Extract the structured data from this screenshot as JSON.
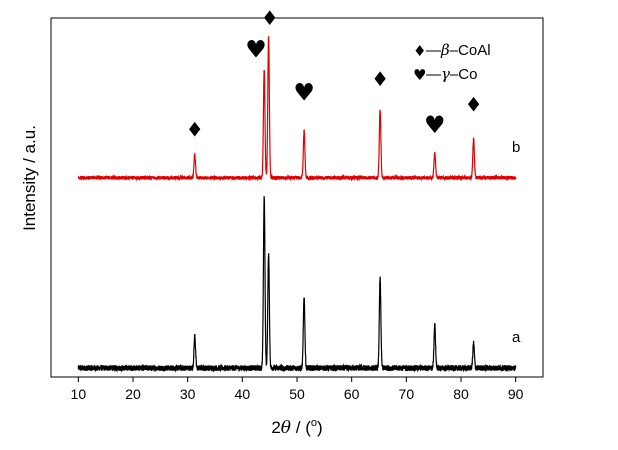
{
  "chart_data": {
    "type": "line",
    "xlabel": "2θ / (°)",
    "xlabel_parts": {
      "num": "2",
      "theta": "θ",
      "rest": " / (",
      "unit": "o",
      "close": ")"
    },
    "ylabel": "Intensity / a.u.",
    "xlim": [
      5,
      95
    ],
    "xticks": [
      10,
      20,
      30,
      40,
      50,
      60,
      70,
      80,
      90
    ],
    "ylim": [
      0,
      1
    ],
    "grid": false,
    "legend": {
      "placement": "top-right",
      "entries": [
        {
          "symbol": "♦",
          "dash": "—",
          "greek": "β",
          "rest": "–CoAl",
          "text": "♦—β–CoAl",
          "icon": "diamond-icon"
        },
        {
          "symbol": "♥",
          "dash": "—",
          "greek": "γ",
          "rest": "–Co",
          "text": "♥— γ–Co",
          "icon": "heart-icon"
        }
      ]
    },
    "series": [
      {
        "name": "a",
        "color": "#000000",
        "baseline": 0.025,
        "noise": 0.008,
        "peaks": [
          {
            "x": 31.3,
            "h": 0.09
          },
          {
            "x": 44.0,
            "h": 0.48
          },
          {
            "x": 44.8,
            "h": 0.32
          },
          {
            "x": 51.3,
            "h": 0.2
          },
          {
            "x": 65.2,
            "h": 0.25
          },
          {
            "x": 75.2,
            "h": 0.12
          },
          {
            "x": 82.3,
            "h": 0.07
          }
        ]
      },
      {
        "name": "b",
        "color": "#e00000",
        "baseline": 0.555,
        "noise": 0.005,
        "peaks": [
          {
            "x": 31.3,
            "h": 0.065
          },
          {
            "x": 44.0,
            "h": 0.3
          },
          {
            "x": 44.8,
            "h": 0.39
          },
          {
            "x": 51.3,
            "h": 0.13
          },
          {
            "x": 65.2,
            "h": 0.19
          },
          {
            "x": 75.2,
            "h": 0.07
          },
          {
            "x": 82.3,
            "h": 0.11
          }
        ]
      }
    ],
    "phase_markers": [
      {
        "x": 31.3,
        "y": 0.67,
        "symbol": "♦",
        "phase": "β-CoAl",
        "icon": "diamond-icon"
      },
      {
        "x": 42.5,
        "y": 0.89,
        "symbol": "♥",
        "phase": "γ-Co",
        "icon": "heart-icon"
      },
      {
        "x": 45.0,
        "y": 0.98,
        "symbol": "♦",
        "phase": "β-CoAl",
        "icon": "diamond-icon"
      },
      {
        "x": 51.3,
        "y": 0.77,
        "symbol": "♥",
        "phase": "γ-Co",
        "icon": "heart-icon"
      },
      {
        "x": 65.2,
        "y": 0.81,
        "symbol": "♦",
        "phase": "β-CoAl",
        "icon": "diamond-icon"
      },
      {
        "x": 75.2,
        "y": 0.68,
        "symbol": "♥",
        "phase": "γ-Co",
        "icon": "heart-icon"
      },
      {
        "x": 82.3,
        "y": 0.74,
        "symbol": "♦",
        "phase": "β-CoAl",
        "icon": "diamond-icon"
      }
    ]
  }
}
